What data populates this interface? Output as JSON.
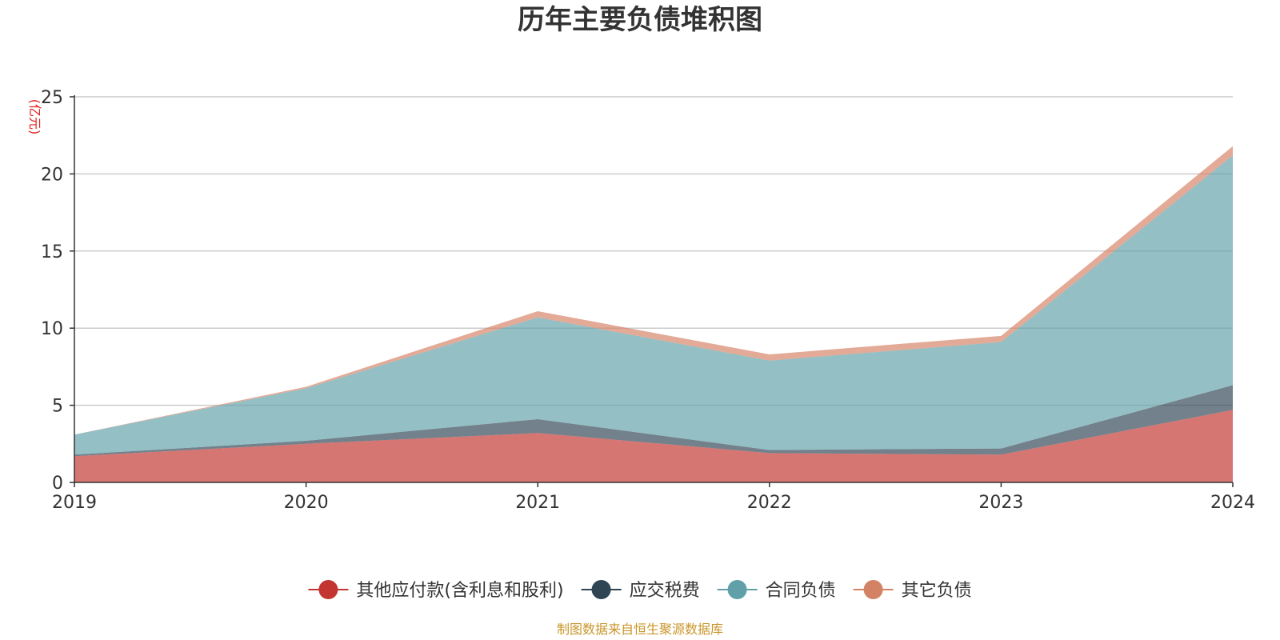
{
  "chart_data": {
    "type": "area",
    "stacked": true,
    "title": "历年主要负债堆积图",
    "unit_label": "(亿元)",
    "categories": [
      "2019",
      "2020",
      "2021",
      "2022",
      "2023",
      "2024"
    ],
    "ylim": [
      0,
      25
    ],
    "yticks": [
      0,
      5,
      10,
      15,
      20,
      25
    ],
    "grid": true,
    "legend_position": "bottom",
    "series": [
      {
        "name": "其他应付款(含利息和股利)",
        "color": "#c23531",
        "values": [
          1.7,
          2.5,
          3.2,
          1.9,
          1.8,
          4.7
        ]
      },
      {
        "name": "应交税费",
        "color": "#2f4554",
        "values": [
          0.1,
          0.2,
          0.9,
          0.2,
          0.4,
          1.6
        ]
      },
      {
        "name": "合同负债",
        "color": "#61a0a8",
        "values": [
          1.3,
          3.4,
          6.6,
          5.8,
          6.9,
          14.9
        ]
      },
      {
        "name": "其它负债",
        "color": "#d48265",
        "values": [
          0.0,
          0.1,
          0.4,
          0.4,
          0.4,
          0.6
        ]
      }
    ],
    "source_note": "制图数据来自恒生聚源数据库"
  }
}
